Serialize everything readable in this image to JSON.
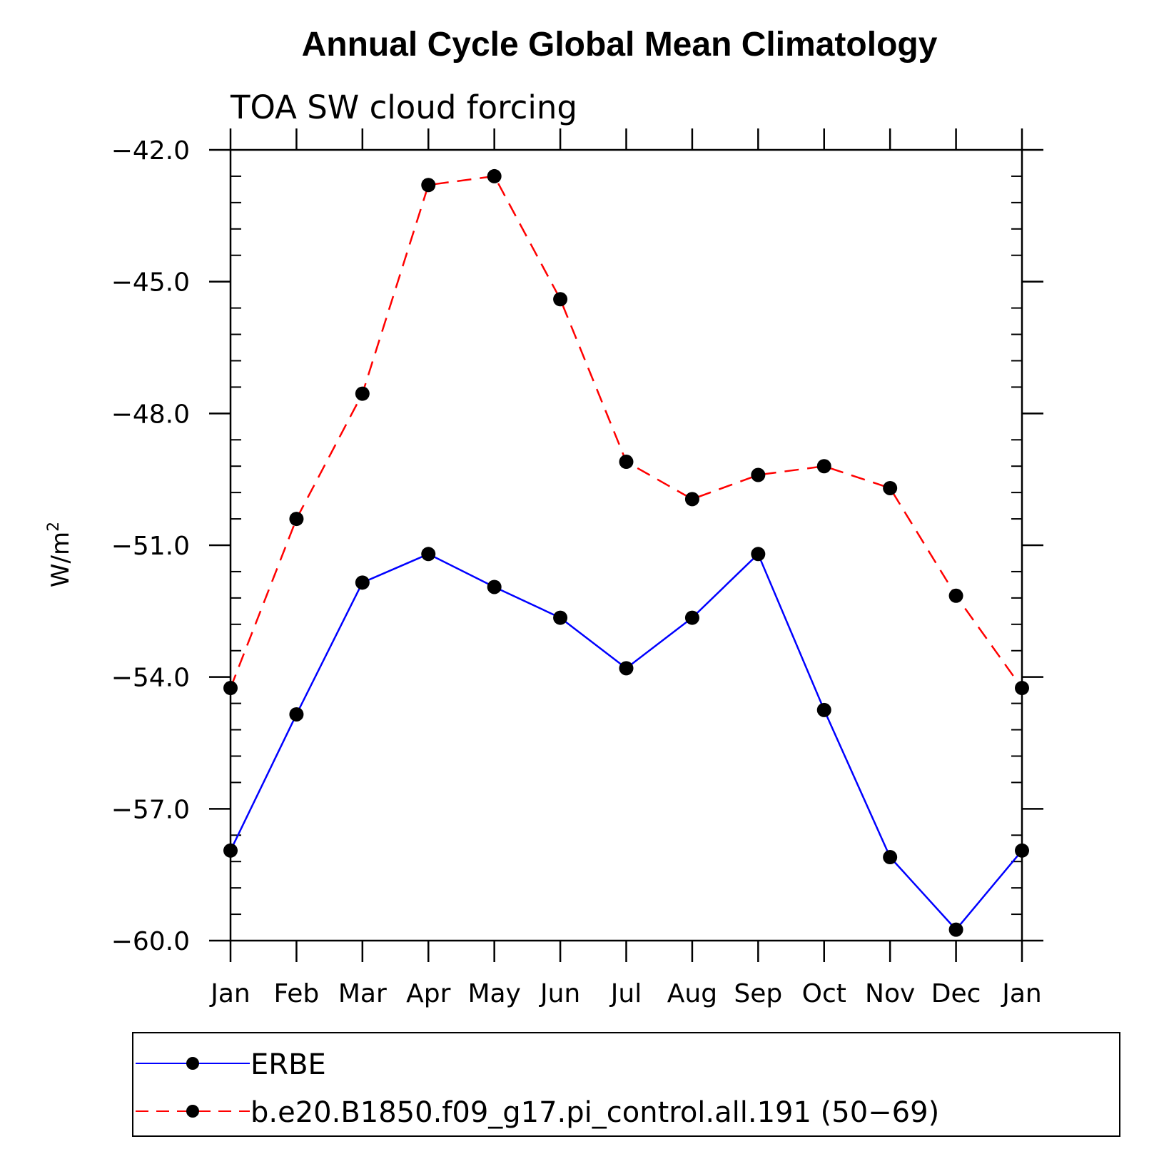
{
  "chart_data": {
    "type": "line",
    "title": "Annual Cycle Global Mean Climatology",
    "subtitle": "TOA SW cloud forcing",
    "ylabel_base": "W/m",
    "ylabel_sup": "2",
    "xlabel": "",
    "categories": [
      "Jan",
      "Feb",
      "Mar",
      "Apr",
      "May",
      "Jun",
      "Jul",
      "Aug",
      "Sep",
      "Oct",
      "Nov",
      "Dec",
      "Jan"
    ],
    "ylim": [
      -60,
      -42
    ],
    "yticks": [
      -42,
      -45,
      -48,
      -51,
      -54,
      -57,
      -60
    ],
    "ytick_labels": [
      "−42.0",
      "−45.0",
      "−48.0",
      "−51.0",
      "−54.0",
      "−57.0",
      "−60.0"
    ],
    "grid": false,
    "legend_position": "bottom",
    "series": [
      {
        "name": "ERBE",
        "color": "#0000ff",
        "dash": "solid",
        "values": [
          -57.95,
          -54.85,
          -51.85,
          -51.2,
          -51.95,
          -52.65,
          -53.8,
          -52.65,
          -51.2,
          -54.75,
          -58.1,
          -59.75,
          -57.95
        ]
      },
      {
        "name": "b.e20.B1850.f09_g17.pi_control.all.191 (50−69)",
        "color": "#ff0000",
        "dash": "dashed",
        "values": [
          -54.25,
          -50.4,
          -47.55,
          -42.8,
          -42.6,
          -45.4,
          -49.1,
          -49.95,
          -49.4,
          -49.2,
          -49.7,
          -52.15,
          -54.25
        ]
      }
    ]
  }
}
